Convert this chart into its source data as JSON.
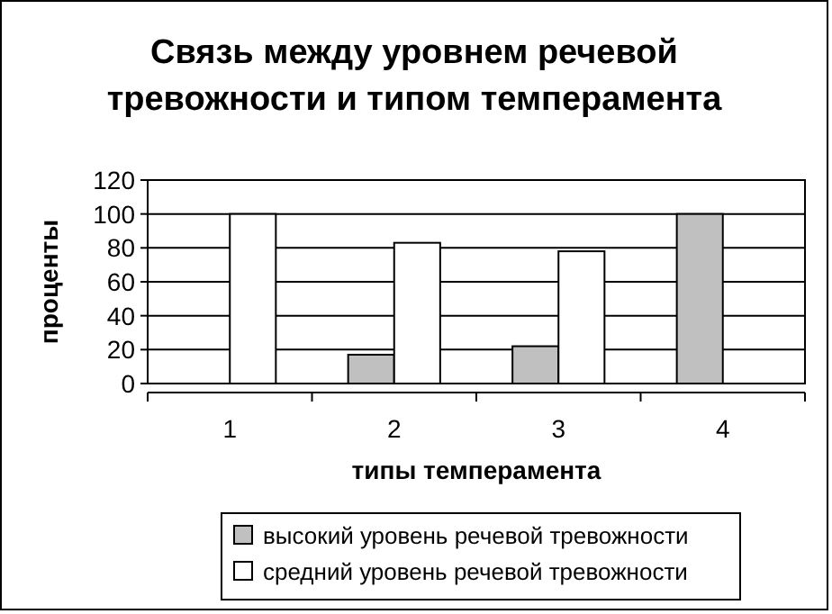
{
  "chart_data": {
    "type": "bar",
    "title": "Связь между уровнем речевой тревожности и типом темперамента",
    "xlabel": "типы темперамента",
    "ylabel": "проценты",
    "categories": [
      "1",
      "2",
      "3",
      "4"
    ],
    "series": [
      {
        "name": "высокий уровень речевой тревожности",
        "color": "#c0c0c0",
        "values": [
          0,
          17,
          22,
          100
        ]
      },
      {
        "name": "средний уровень речевой тревожности",
        "color": "#ffffff",
        "values": [
          100,
          83,
          78,
          0
        ]
      }
    ],
    "ylim": [
      0,
      120
    ],
    "yticks": [
      0,
      20,
      40,
      60,
      80,
      100,
      120
    ],
    "grid": "y",
    "legend": "bottom"
  }
}
